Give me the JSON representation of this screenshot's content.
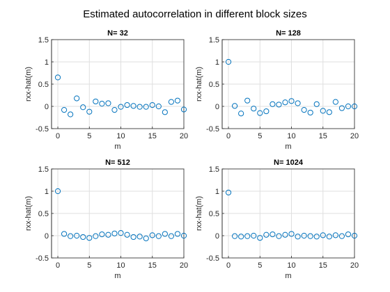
{
  "chart_data": {
    "title": "Estimated autocorrelation in different block sizes",
    "marker_color": "#0072BD",
    "panels": [
      {
        "type": "scatter",
        "title": "N= 32",
        "xlabel": "m",
        "ylabel": "rxx-hat(m)",
        "xlim": [
          -1,
          20
        ],
        "ylim": [
          -0.5,
          1.5
        ],
        "xticks": [
          0,
          5,
          10,
          15,
          20
        ],
        "yticks": [
          -0.5,
          0,
          0.5,
          1,
          1.5
        ],
        "grid": true,
        "x": [
          0,
          1,
          2,
          3,
          4,
          5,
          6,
          7,
          8,
          9,
          10,
          11,
          12,
          13,
          14,
          15,
          16,
          17,
          18,
          19,
          20
        ],
        "y": [
          0.65,
          -0.08,
          -0.18,
          0.18,
          -0.02,
          -0.12,
          0.11,
          0.06,
          0.07,
          -0.08,
          -0.01,
          0.03,
          0.01,
          -0.01,
          -0.01,
          0.03,
          0.0,
          -0.13,
          0.1,
          0.13,
          -0.07
        ]
      },
      {
        "type": "scatter",
        "title": "N= 128",
        "xlabel": "m",
        "ylabel": "rxx-hat(m)",
        "xlim": [
          -1,
          20
        ],
        "ylim": [
          -0.5,
          1.5
        ],
        "xticks": [
          0,
          5,
          10,
          15,
          20
        ],
        "yticks": [
          -0.5,
          0,
          0.5,
          1,
          1.5
        ],
        "grid": true,
        "x": [
          0,
          1,
          2,
          3,
          4,
          5,
          6,
          7,
          8,
          9,
          10,
          11,
          12,
          13,
          14,
          15,
          16,
          17,
          18,
          19,
          20
        ],
        "y": [
          1.0,
          0.01,
          -0.16,
          0.13,
          -0.05,
          -0.15,
          -0.11,
          0.05,
          0.04,
          0.09,
          0.12,
          0.07,
          -0.08,
          -0.14,
          0.05,
          -0.1,
          -0.13,
          0.1,
          -0.04,
          0.0,
          0.0
        ]
      },
      {
        "type": "scatter",
        "title": "N= 512",
        "xlabel": "m",
        "ylabel": "rxx-hat(m)",
        "xlim": [
          -1,
          20
        ],
        "ylim": [
          -0.5,
          1.5
        ],
        "xticks": [
          0,
          5,
          10,
          15,
          20
        ],
        "yticks": [
          -0.5,
          0,
          0.5,
          1,
          1.5
        ],
        "grid": true,
        "x": [
          0,
          1,
          2,
          3,
          4,
          5,
          6,
          7,
          8,
          9,
          10,
          11,
          12,
          13,
          14,
          15,
          16,
          17,
          18,
          19,
          20
        ],
        "y": [
          1.0,
          0.04,
          -0.01,
          0.0,
          -0.03,
          -0.05,
          -0.01,
          0.03,
          0.02,
          0.05,
          0.06,
          0.02,
          -0.03,
          -0.02,
          -0.06,
          0.01,
          -0.01,
          0.04,
          -0.01,
          0.04,
          0.0
        ]
      },
      {
        "type": "scatter",
        "title": "N= 1024",
        "xlabel": "m",
        "ylabel": "rxx-hat(m)",
        "xlim": [
          -1,
          20
        ],
        "ylim": [
          -0.5,
          1.5
        ],
        "xticks": [
          0,
          5,
          10,
          15,
          20
        ],
        "yticks": [
          -0.5,
          0,
          0.5,
          1,
          1.5
        ],
        "grid": true,
        "x": [
          0,
          1,
          2,
          3,
          4,
          5,
          6,
          7,
          8,
          9,
          10,
          11,
          12,
          13,
          14,
          15,
          16,
          17,
          18,
          19,
          20
        ],
        "y": [
          0.97,
          -0.01,
          -0.02,
          -0.01,
          0.0,
          -0.05,
          0.02,
          0.03,
          -0.01,
          0.02,
          0.04,
          -0.02,
          0.0,
          -0.01,
          -0.02,
          0.01,
          -0.02,
          0.01,
          -0.01,
          0.03,
          0.0
        ]
      }
    ]
  }
}
